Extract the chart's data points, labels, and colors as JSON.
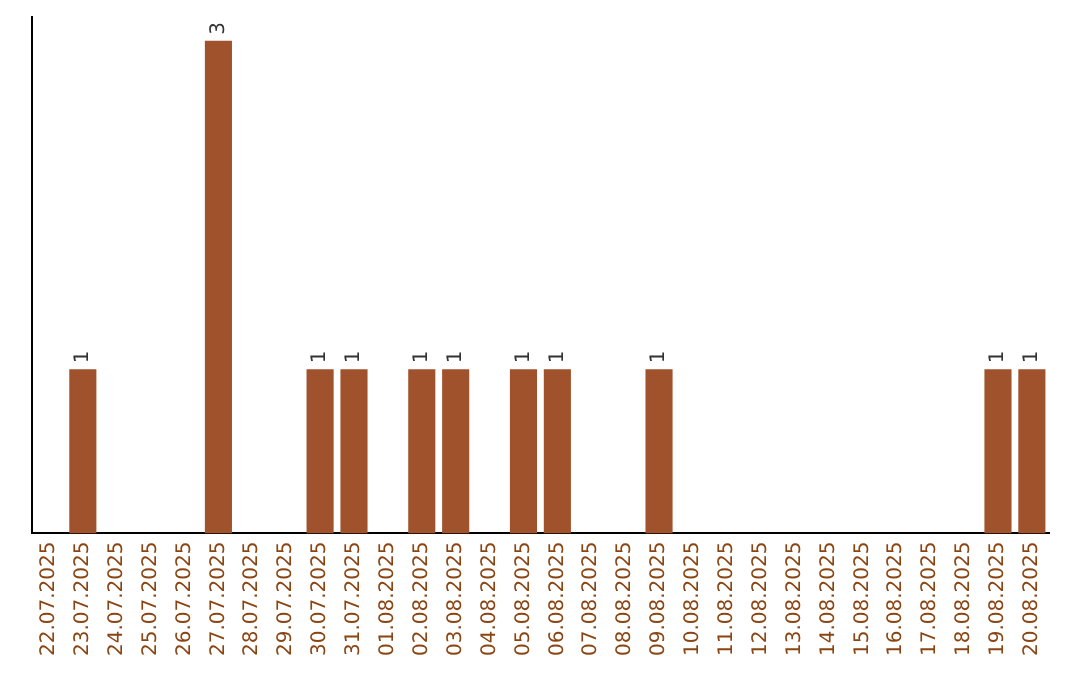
{
  "chart_data": {
    "type": "bar",
    "categories": [
      "22.07.2025",
      "23.07.2025",
      "24.07.2025",
      "25.07.2025",
      "26.07.2025",
      "27.07.2025",
      "28.07.2025",
      "29.07.2025",
      "30.07.2025",
      "31.07.2025",
      "01.08.2025",
      "02.08.2025",
      "03.08.2025",
      "04.08.2025",
      "05.08.2025",
      "06.08.2025",
      "07.08.2025",
      "08.08.2025",
      "09.08.2025",
      "10.08.2025",
      "11.08.2025",
      "12.08.2025",
      "13.08.2025",
      "14.08.2025",
      "15.08.2025",
      "16.08.2025",
      "17.08.2025",
      "18.08.2025",
      "19.08.2025",
      "20.08.2025"
    ],
    "values": [
      0,
      1,
      0,
      0,
      0,
      3,
      0,
      0,
      1,
      1,
      0,
      1,
      1,
      0,
      1,
      1,
      0,
      0,
      1,
      0,
      0,
      0,
      0,
      0,
      0,
      0,
      0,
      0,
      1,
      1
    ],
    "value_labels": [
      null,
      "1",
      null,
      null,
      null,
      "3",
      null,
      null,
      "1",
      "1",
      null,
      "1",
      "1",
      null,
      "1",
      "1",
      null,
      null,
      "1",
      null,
      null,
      null,
      null,
      null,
      null,
      null,
      null,
      null,
      "1",
      "1"
    ],
    "color": "#a0522d",
    "grid": false,
    "legend": false
  }
}
